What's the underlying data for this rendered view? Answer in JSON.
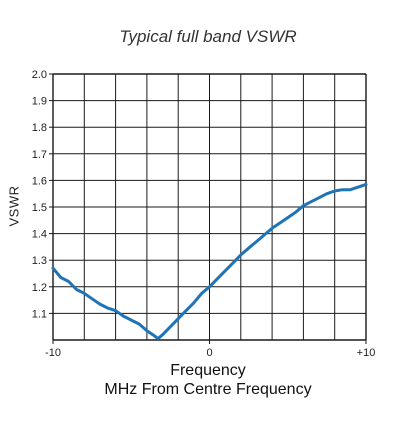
{
  "chart_data": {
    "type": "line",
    "title": "Typical full band VSWR",
    "ylabel": "VSWR",
    "xlabel_line1": "Frequency",
    "xlabel_line2": "MHz From Centre Frequency",
    "xlim": [
      -10,
      10
    ],
    "ylim": [
      1.0,
      2.0
    ],
    "x_ticks": [
      -10,
      0,
      10
    ],
    "x_tick_labels": [
      "-10",
      "0",
      "+10"
    ],
    "y_ticks": [
      1.1,
      1.2,
      1.3,
      1.4,
      1.5,
      1.6,
      1.7,
      1.8,
      1.9,
      2.0
    ],
    "y_tick_labels": [
      "1.1",
      "1.2",
      "1.3",
      "1.4",
      "1.5",
      "1.6",
      "1.7",
      "1.8",
      "1.9",
      "2.0"
    ],
    "grid": true,
    "line_color": "#1f73b7",
    "series": [
      {
        "x": [
          -10,
          -9.5,
          -9,
          -8.5,
          -8,
          -7.5,
          -7,
          -6.5,
          -6,
          -5.5,
          -5,
          -4.5,
          -4,
          -3.5,
          -3.3,
          -3,
          -2.5,
          -2,
          -1.5,
          -1,
          -0.5,
          0,
          0.5,
          1,
          1.5,
          2,
          2.5,
          3,
          3.5,
          4,
          4.5,
          5,
          5.5,
          6,
          6.5,
          7,
          7.5,
          8,
          8.5,
          9,
          9.5,
          10
        ],
        "y": [
          1.27,
          1.235,
          1.22,
          1.19,
          1.175,
          1.155,
          1.135,
          1.12,
          1.11,
          1.09,
          1.075,
          1.06,
          1.035,
          1.015,
          1.005,
          1.02,
          1.05,
          1.08,
          1.11,
          1.14,
          1.175,
          1.2,
          1.23,
          1.26,
          1.29,
          1.32,
          1.345,
          1.37,
          1.395,
          1.42,
          1.44,
          1.46,
          1.48,
          1.505,
          1.52,
          1.535,
          1.55,
          1.56,
          1.565,
          1.565,
          1.575,
          1.585
        ]
      }
    ]
  }
}
